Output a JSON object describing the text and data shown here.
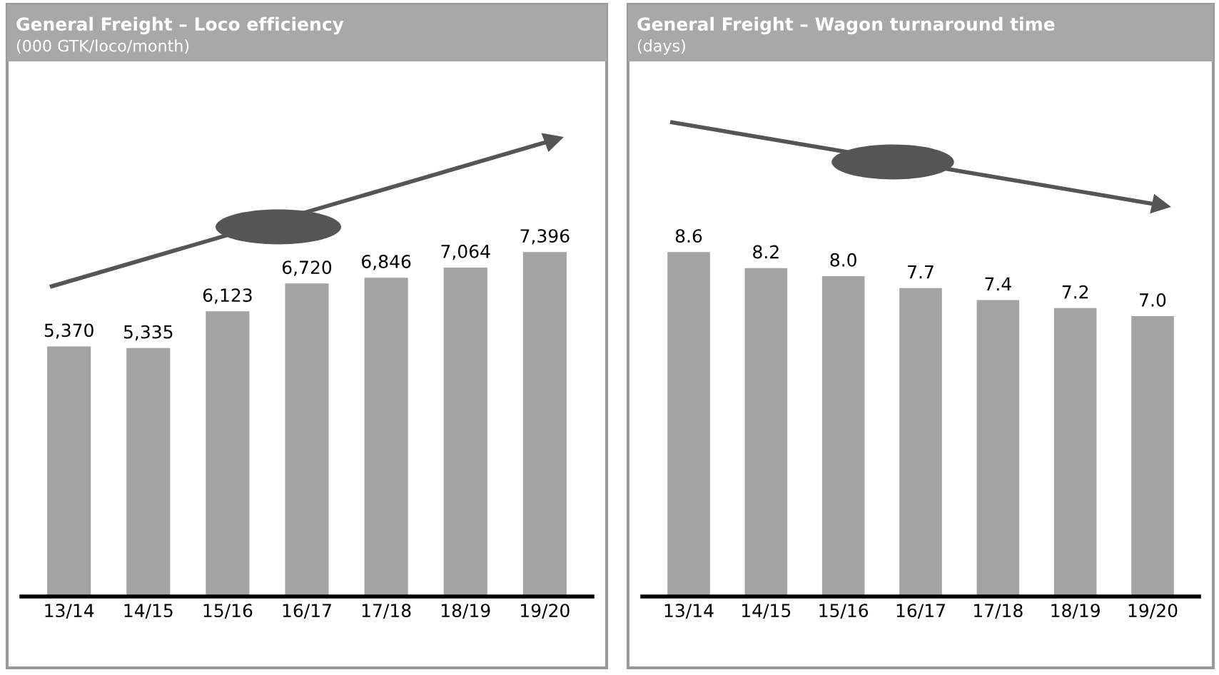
{
  "chart_data": [
    {
      "type": "bar",
      "title": "General Freight – Loco efficiency",
      "subtitle": "(000 GTK/loco/month)",
      "categories": [
        "13/14",
        "14/15",
        "15/16",
        "16/17",
        "17/18",
        "18/19",
        "19/20"
      ],
      "values": [
        5370,
        5335,
        6123,
        6720,
        6846,
        7064,
        7396
      ],
      "value_labels": [
        "5,370",
        "5,335",
        "6,123",
        "6,720",
        "6,846",
        "7,064",
        "7,396"
      ],
      "color": "#a3a3a3",
      "tick_labels": "x",
      "grid": false,
      "legend": false
    },
    {
      "type": "bar",
      "title": "General Freight – Wagon turnaround time",
      "subtitle": "(days)",
      "categories": [
        "13/14",
        "14/15",
        "15/16",
        "16/17",
        "17/18",
        "18/19",
        "19/20"
      ],
      "values": [
        8.6,
        8.2,
        8.0,
        7.7,
        7.4,
        7.2,
        7.0
      ],
      "value_labels": [
        "8.6",
        "8.2",
        "8.0",
        "7.7",
        "7.4",
        "7.2",
        "7.0"
      ],
      "color": "#a3a3a3",
      "tick_labels": "x",
      "grid": false,
      "legend": false
    }
  ]
}
